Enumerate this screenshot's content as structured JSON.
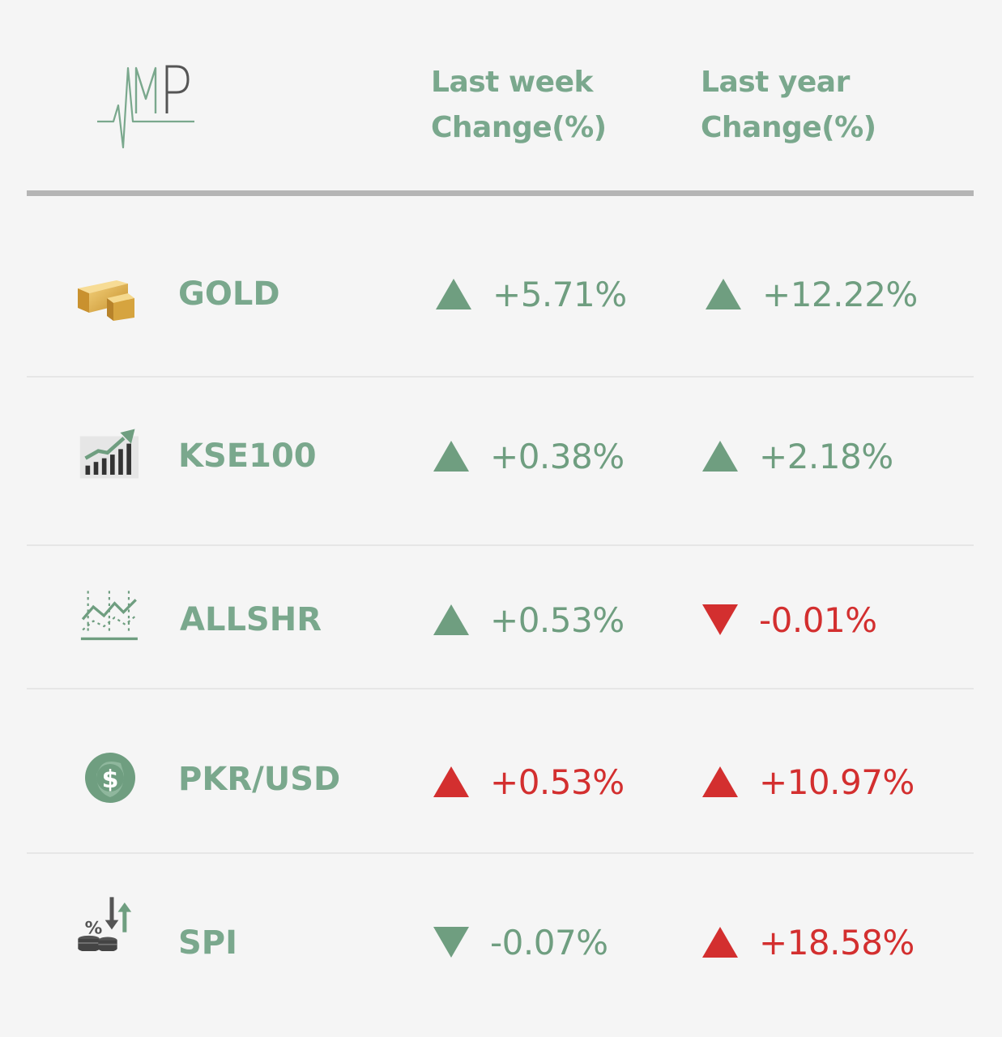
{
  "header": {
    "logo_text": "AMP",
    "week_line1": "Last week",
    "week_line2": "Change(%)",
    "year_line1": "Last year",
    "year_line2": "Change(%)"
  },
  "colors": {
    "green": "#6f9e80",
    "red": "#d32f2f",
    "header_text": "#7aa88d"
  },
  "rows": [
    {
      "name": "GOLD",
      "icon": "gold-bar-icon",
      "week": {
        "value": "+5.71%",
        "direction": "up",
        "color": "green"
      },
      "year": {
        "value": "+12.22%",
        "direction": "up",
        "color": "green"
      }
    },
    {
      "name": "KSE100",
      "icon": "rising-bar-chart-icon",
      "week": {
        "value": "+0.38%",
        "direction": "up",
        "color": "green"
      },
      "year": {
        "value": "+2.18%",
        "direction": "up",
        "color": "green"
      }
    },
    {
      "name": "ALLSHR",
      "icon": "line-chart-icon",
      "week": {
        "value": "+0.53%",
        "direction": "up",
        "color": "green"
      },
      "year": {
        "value": "-0.01%",
        "direction": "down",
        "color": "red"
      }
    },
    {
      "name": "PKR/USD",
      "icon": "dollar-coin-icon",
      "week": {
        "value": "+0.53%",
        "direction": "up",
        "color": "red"
      },
      "year": {
        "value": "+10.97%",
        "direction": "up",
        "color": "red"
      }
    },
    {
      "name": "SPI",
      "icon": "percent-coins-arrows-icon",
      "week": {
        "value": "-0.07%",
        "direction": "down",
        "color": "green"
      },
      "year": {
        "value": "+18.58%",
        "direction": "up",
        "color": "red"
      }
    }
  ]
}
